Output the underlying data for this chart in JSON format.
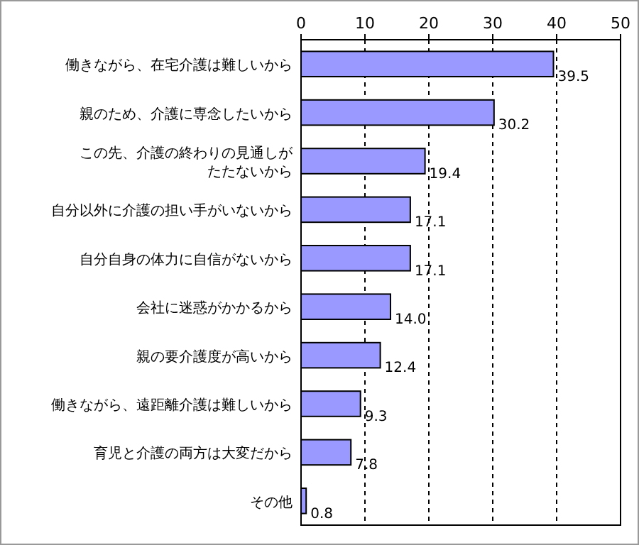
{
  "chart_data": {
    "type": "bar",
    "orientation": "horizontal",
    "categories": [
      "働きながら、在宅介護は難しいから",
      "親のため、介護に専念したいから",
      "この先、介護の終わりの見通しがたたないから",
      "自分以外に介護の担い手がいないから",
      "自分自身の体力に自信がないから",
      "会社に迷惑がかかるから",
      "親の要介護度が高いから",
      "働きながら、遠距離介護は難しいから",
      "育児と介護の両方は大変だから",
      "その他"
    ],
    "values": [
      39.5,
      30.2,
      19.4,
      17.1,
      17.1,
      14.0,
      12.4,
      9.3,
      7.8,
      0.8
    ],
    "value_labels": [
      "39.5",
      "30.2",
      "19.4",
      "17.1",
      "17.1",
      "14.0",
      "12.4",
      "9.3",
      "7.8",
      "0.8"
    ],
    "color": "#9999ff",
    "xlim": [
      0,
      50
    ],
    "xticks": [
      0,
      10,
      20,
      30,
      40,
      50
    ],
    "grid": "x"
  }
}
